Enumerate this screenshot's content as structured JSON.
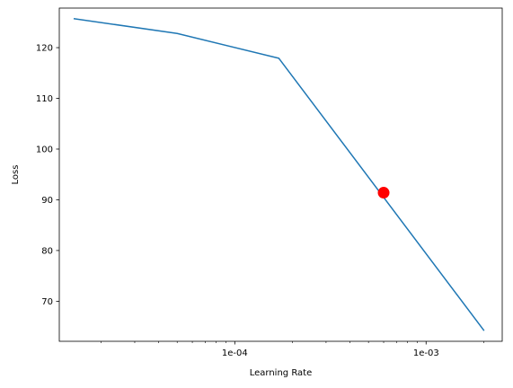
{
  "chart_data": {
    "type": "line",
    "title": "",
    "xlabel": "Learning Rate",
    "ylabel": "Loss",
    "x_scale": "log",
    "xlim": [
      1.21e-05,
      0.0025
    ],
    "ylim": [
      62.1,
      127.8
    ],
    "x_ticks": [
      {
        "value": 0.0001,
        "label": "1e-04"
      },
      {
        "value": 0.001,
        "label": "1e-03"
      }
    ],
    "y_ticks": [
      {
        "value": 70,
        "label": "70"
      },
      {
        "value": 80,
        "label": "80"
      },
      {
        "value": 90,
        "label": "90"
      },
      {
        "value": 100,
        "label": "100"
      },
      {
        "value": 110,
        "label": "110"
      },
      {
        "value": 120,
        "label": "120"
      }
    ],
    "grid": false,
    "series": [
      {
        "color": "#1f77b4",
        "points": [
          {
            "x": 1.45e-05,
            "y": 125.7
          },
          {
            "x": 5e-05,
            "y": 122.8
          },
          {
            "x": 0.00017,
            "y": 117.9
          },
          {
            "x": 0.002,
            "y": 64.3
          }
        ]
      }
    ],
    "highlight_point": {
      "x": 0.0006,
      "y": 91.4,
      "color": "#ff0000"
    }
  }
}
